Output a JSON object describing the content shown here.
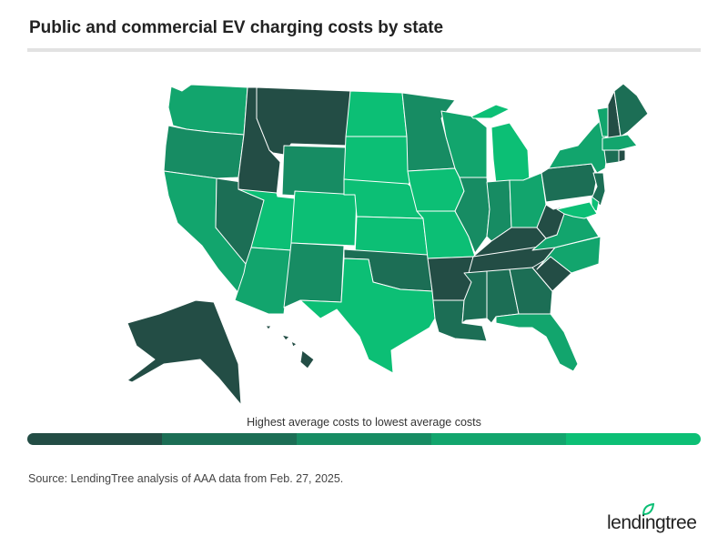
{
  "title": "Public and commercial EV charging costs by state",
  "legend": {
    "label": "Highest average costs to lowest average costs",
    "colors": [
      "#234d45",
      "#1c6e55",
      "#178c63",
      "#12a56d",
      "#0cbf75"
    ]
  },
  "source": "Source: LendingTree analysis of AAA data from Feb. 27, 2025.",
  "logo": "lendingtree",
  "state_tiers": {
    "WA": 4,
    "OR": 3,
    "CA": 4,
    "NV": 2,
    "ID": 1,
    "MT": 1,
    "WY": 3,
    "UT": 5,
    "CO": 5,
    "AZ": 4,
    "NM": 3,
    "ND": 5,
    "SD": 5,
    "NE": 5,
    "KS": 5,
    "OK": 2,
    "TX": 5,
    "MN": 3,
    "IA": 5,
    "MO": 5,
    "AR": 1,
    "LA": 2,
    "WI": 4,
    "IL": 3,
    "MI": 5,
    "IN": 3,
    "OH": 4,
    "KY": 1,
    "TN": 1,
    "MS": 2,
    "AL": 2,
    "GA": 2,
    "FL": 4,
    "SC": 1,
    "NC": 4,
    "VA": 4,
    "WV": 1,
    "PA": 2,
    "NY": 4,
    "VT": 4,
    "NH": 1,
    "ME": 2,
    "MA": 4,
    "CT": 2,
    "RI": 1,
    "NJ": 2,
    "DE": 5,
    "MD": 5,
    "AK": 1,
    "HI": 1
  }
}
